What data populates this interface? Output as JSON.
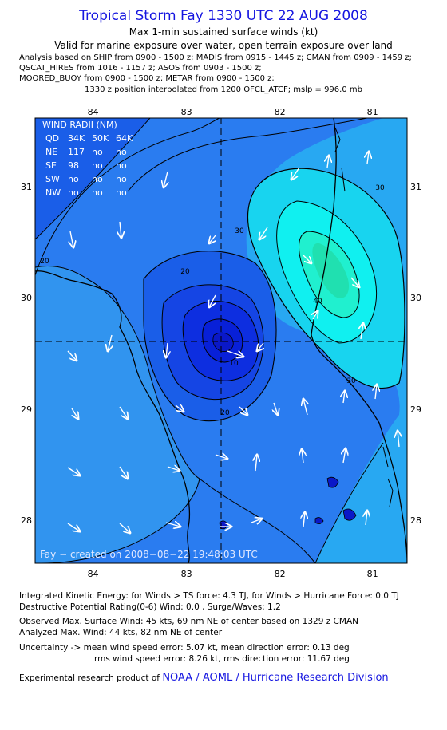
{
  "header": {
    "title": "Tropical Storm Fay 1330 UTC 22 AUG 2008",
    "subtitle1": "Max 1-min sustained surface winds (kt)",
    "subtitle2": "Valid for marine exposure over water, open terrain exposure over land",
    "analysis_lines": [
      "Analysis based on  SHIP from 0900 - 1500 z;  MADIS from 0915 - 1445 z;  CMAN from 0909 - 1459 z;",
      "QSCAT_HIRES from 1016 - 1157 z;  ASOS from 0903 - 1500 z;",
      "MOORED_BUOY from 0900 - 1500 z;  METAR from 0900 - 1500 z;"
    ],
    "position_note": "1330 z position interpolated from 1200 OFCL_ATCF; mslp = 996.0 mb"
  },
  "map": {
    "lon_ticks": [
      "−84",
      "−83",
      "−82",
      "−81"
    ],
    "lat_ticks": [
      "31",
      "30",
      "29",
      "28"
    ],
    "wind_radii": {
      "title": "WIND RADII (NM)",
      "header": [
        "QD",
        "34K",
        "50K",
        "64K"
      ],
      "rows": [
        [
          "NE",
          "117",
          "no",
          "no"
        ],
        [
          "SE",
          "98",
          "no",
          "no"
        ],
        [
          "SW",
          "no",
          "no",
          "no"
        ],
        [
          "NW",
          "no",
          "no",
          "no"
        ]
      ]
    },
    "contour_labels": [
      "10",
      "20",
      "20",
      "20",
      "30",
      "30",
      "30",
      "40"
    ],
    "credit": "Fay − created on 2008−08−22  19:48:03 UTC",
    "colors": {
      "level_lt10": "#0820e0",
      "level_10_15": "#1a50ec",
      "level_15_20": "#2a78f0",
      "level_20_25": "#30a0f0",
      "level_25_30": "#30c0f0",
      "level_30_35": "#10f0f0",
      "level_35_40": "#20f0cf",
      "level_40_45": "#20e0b0"
    }
  },
  "footer": {
    "ike": "Integrated Kinetic Energy:  for Winds > TS force: 4.3 TJ,  for Winds > Hurricane Force: 0.0 TJ",
    "dpr": "Destructive Potential Rating(0-6)   Wind: 0.0 , Surge/Waves: 1.2",
    "obs_max": "Observed Max. Surface Wind: 45 kts, 69 nm NE of center based on 1329 z CMAN",
    "analyzed_max": "Analyzed Max. Wind: 44 kts, 82 nm NE of center",
    "uncertainty1": "Uncertainty -> mean wind speed error: 5.07 kt,   mean direction error: 0.13 deg",
    "uncertainty2": "rms wind speed error: 8.26 kt,   rms direction error: 11.67 deg",
    "product_prefix": "Experimental research product of",
    "product_org": "NOAA / AOML / Hurricane Research Division"
  }
}
